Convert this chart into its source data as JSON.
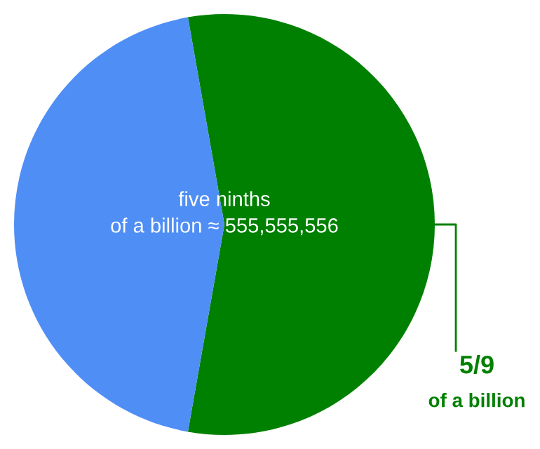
{
  "chart_data": {
    "type": "pie",
    "categories": [
      "5/9\nof a billion",
      null
    ],
    "values": [
      55.556,
      44.444
    ],
    "colors": [
      "#008000",
      "#4f8ef5"
    ],
    "annotations": [
      "five ninths\nof a billion ≈ 555,555,556"
    ]
  }
}
